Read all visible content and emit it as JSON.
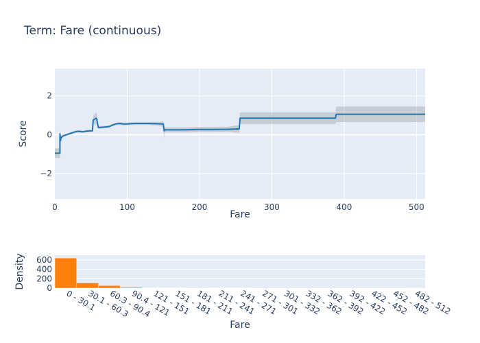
{
  "chart_data": [
    {
      "type": "line",
      "title": "Term: Fare (continuous)",
      "xlabel": "Fare",
      "ylabel": "Score",
      "xlim": [
        0,
        512
      ],
      "ylim": [
        -3.3,
        3.4
      ],
      "xticks": [
        0,
        100,
        200,
        300,
        400,
        500
      ],
      "yticks": [
        -2,
        0,
        2
      ],
      "grid": true,
      "colors": {
        "line": "#1f77b4",
        "band": "#9aa0a6",
        "plot_bg": "#e5ecf6"
      },
      "series": [
        {
          "x": [
            0,
            7,
            7,
            8,
            8,
            10,
            12,
            16,
            20,
            24,
            28,
            33,
            38,
            43,
            48,
            52,
            53,
            54,
            55,
            57,
            58,
            60,
            61,
            65,
            70,
            75,
            80,
            85,
            90,
            95,
            100,
            105,
            110,
            115,
            120,
            130,
            135,
            140,
            145,
            150,
            151,
            152,
            160,
            180,
            200,
            220,
            240,
            255,
            256,
            300,
            350,
            388,
            389,
            450,
            512
          ],
          "y": [
            -0.95,
            -0.95,
            0.05,
            -0.3,
            -0.2,
            -0.1,
            -0.05,
            0.0,
            0.05,
            0.1,
            0.15,
            0.18,
            0.15,
            0.18,
            0.2,
            0.2,
            0.75,
            0.78,
            0.8,
            0.85,
            0.8,
            0.38,
            0.37,
            0.38,
            0.4,
            0.42,
            0.5,
            0.56,
            0.58,
            0.55,
            0.55,
            0.57,
            0.58,
            0.58,
            0.58,
            0.58,
            0.57,
            0.57,
            0.56,
            0.55,
            0.2,
            0.25,
            0.25,
            0.25,
            0.27,
            0.27,
            0.28,
            0.3,
            0.85,
            0.85,
            0.85,
            0.85,
            1.05,
            1.05,
            1.05
          ],
          "lower": [
            -1.2,
            -1.2,
            -0.2,
            -0.45,
            -0.35,
            -0.2,
            -0.12,
            -0.06,
            0.0,
            0.04,
            0.09,
            0.12,
            0.09,
            0.12,
            0.14,
            0.14,
            0.55,
            0.55,
            0.5,
            0.55,
            0.5,
            0.3,
            0.3,
            0.32,
            0.34,
            0.36,
            0.44,
            0.5,
            0.5,
            0.48,
            0.48,
            0.5,
            0.5,
            0.5,
            0.5,
            0.5,
            0.48,
            0.48,
            0.46,
            0.4,
            -0.15,
            0.12,
            0.12,
            0.12,
            0.14,
            0.14,
            0.15,
            0.1,
            0.55,
            0.55,
            0.55,
            0.55,
            0.65,
            0.65,
            0.65
          ],
          "upper": [
            -0.7,
            -0.7,
            0.25,
            -0.15,
            -0.05,
            0.0,
            0.02,
            0.06,
            0.1,
            0.16,
            0.21,
            0.24,
            0.21,
            0.24,
            0.26,
            0.26,
            0.95,
            1.0,
            1.05,
            1.15,
            1.1,
            0.46,
            0.44,
            0.44,
            0.46,
            0.48,
            0.56,
            0.62,
            0.66,
            0.62,
            0.62,
            0.64,
            0.66,
            0.66,
            0.66,
            0.66,
            0.66,
            0.66,
            0.66,
            0.7,
            0.5,
            0.38,
            0.38,
            0.38,
            0.4,
            0.4,
            0.41,
            0.5,
            1.15,
            1.15,
            1.15,
            1.15,
            1.45,
            1.45,
            1.45
          ]
        }
      ]
    },
    {
      "type": "bar",
      "xlabel": "Fare",
      "ylabel": "Density",
      "ylim": [
        0,
        700
      ],
      "yticks": [
        0,
        200,
        400,
        600
      ],
      "grid": true,
      "colors": {
        "bar": "#ff7f0e",
        "plot_bg": "#e5ecf6"
      },
      "categories": [
        "0 - 30.1",
        "30.1 - 60.3",
        "60.3 - 90.4",
        "90.4 - 121",
        "121 - 151",
        "151 - 181",
        "181 - 211",
        "211 - 241",
        "241 - 271",
        "271 - 301",
        "301 - 332",
        "332 - 362",
        "362 - 392",
        "392 - 422",
        "422 - 452",
        "452 - 482",
        "482 - 512"
      ],
      "values": [
        640,
        110,
        55,
        18,
        8,
        6,
        0,
        8,
        6,
        0,
        0,
        0,
        0,
        0,
        0,
        0,
        3
      ]
    }
  ]
}
